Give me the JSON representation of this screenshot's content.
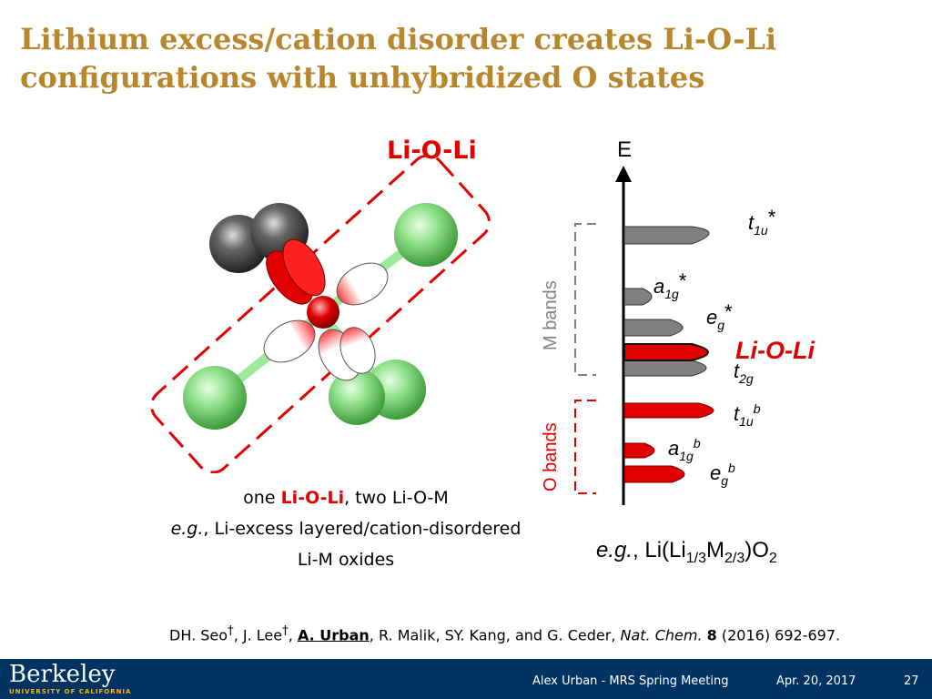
{
  "slide": {
    "title_line1": "Lithium excess/cation disorder creates Li-O-Li",
    "title_line2": "configurations with unhybridized O states"
  },
  "molecule": {
    "label": "Li-O-Li",
    "caption": {
      "line1_red": "Li-O-Li",
      "line1_pre": "one ",
      "line1_post": ", two Li-O-M",
      "line2_italic": "e.g.",
      "line2_rest": ", Li-excess layered/cation-disordered",
      "line3": "Li-M oxides"
    },
    "colors": {
      "li": "#8fe08a",
      "metal": "#5a5a5a",
      "oxygen": "#e00000",
      "outline": "#e00000"
    }
  },
  "energy_diagram": {
    "axis_label": "E",
    "m_bands_label": "M bands",
    "o_bands_label": "O bands",
    "highlight_label": "Li-O-Li",
    "levels": [
      {
        "sym": "t",
        "sub": "1u",
        "sup": "*",
        "type": "M"
      },
      {
        "sym": "a",
        "sub": "1g",
        "sup": "*",
        "type": "M"
      },
      {
        "sym": "e",
        "sub": "g",
        "sup": "*",
        "type": "M"
      },
      {
        "sym": "",
        "sub": "",
        "sup": "",
        "type": "O-Li"
      },
      {
        "sym": "t",
        "sub": "2g",
        "sup": "",
        "type": "M"
      },
      {
        "sym": "t",
        "sub": "1u",
        "sup": "b",
        "type": "O"
      },
      {
        "sym": "a",
        "sub": "1g",
        "sup": "b",
        "type": "O"
      },
      {
        "sym": "e",
        "sub": "g",
        "sup": "b",
        "type": "O"
      }
    ],
    "example_italic": "e.g.",
    "example_pre": ", Li(Li",
    "example_sub1": "1/3",
    "example_mid": "M",
    "example_sub2": "2/3",
    "example_post": ")O",
    "example_sub3": "2",
    "colors": {
      "m_band": "#808080",
      "o_band": "#e00000"
    }
  },
  "reference": {
    "authors_pre": "DH. Seo",
    "dagger1": "†",
    "authors_mid": ", J. Lee",
    "dagger2": "†",
    "sep": ", ",
    "author_highlight": "A. Urban",
    "authors_post": ", R. Malik, SY. Kang, and G. Ceder, ",
    "journal": "Nat. Chem.",
    "volume": "8",
    "pages": " (2016) 692-697."
  },
  "footer": {
    "logo": "Berkeley",
    "logo_sub": "UNIVERSITY OF CALIFORNIA",
    "meeting": "Alex Urban - MRS Spring Meeting",
    "date": "Apr. 20, 2017",
    "page": "27",
    "bg": "#003262"
  }
}
